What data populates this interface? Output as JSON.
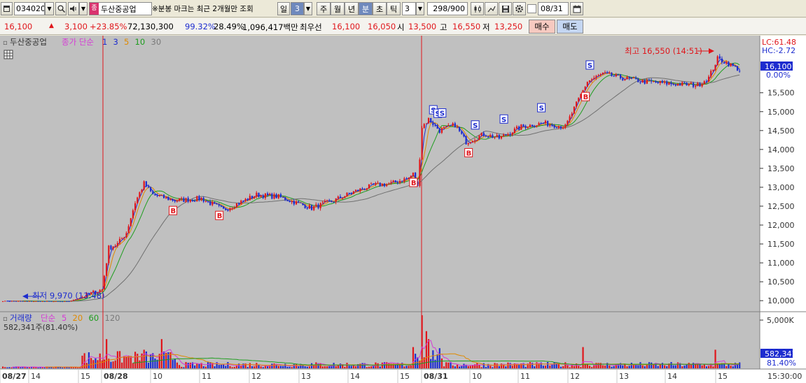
{
  "toolbar": {
    "code": "034020",
    "stock_name": "두산중공업",
    "notice": "※분봉 마크는 최근 2개월만 조회",
    "period_day": "일",
    "period_day_count": "3",
    "period_week": "주",
    "period_month": "월",
    "period_year": "년",
    "period_minute": "분",
    "period_second": "초",
    "period_tick": "틱",
    "interval": "3",
    "count": "298/900",
    "date": "08/31"
  },
  "quote": {
    "price": "16,100",
    "change": "3,100",
    "change_pct": "+23.85%",
    "volume": "72,130,300",
    "volume_ratio": "99.32%",
    "turnover": "28.49%",
    "amount": "1,096,417백만",
    "best_ask_label": "최우선",
    "best_ask": "16,100",
    "best_bid": "16,050",
    "open_label": "시",
    "open": "13,500",
    "high_label": "고",
    "high": "16,550",
    "low_label": "저",
    "low": "13,250",
    "buy_label": "매수",
    "sell_label": "매도"
  },
  "price_panel": {
    "title": "두산중공업",
    "ma_label": "종가 단순",
    "ma_periods": [
      "1",
      "3",
      "5",
      "10",
      "30"
    ],
    "ma_colors": [
      "#1d2ccf",
      "#1d2ccf",
      "#e08a00",
      "#1f9e1f",
      "#7a7a7a"
    ],
    "high_mark": "최고 16,550 (14:51)",
    "low_mark": "최저 9,970 (13:48)",
    "lc": "LC:61.48",
    "hc": "HC:-2.72",
    "current_price": "16,100",
    "current_pct": "0.00%"
  },
  "volume_panel": {
    "title": "거래량",
    "ma_label": "단순",
    "ma_periods": [
      "5",
      "20",
      "60",
      "120"
    ],
    "ma_colors": [
      "#d63ad6",
      "#e08a00",
      "#1f9e1f",
      "#7a7a7a"
    ],
    "info": "582,341주(81.40%)",
    "axis_label": "5,000K",
    "current_volume": "582,341",
    "current_pct": "81.40%"
  },
  "time_axis": {
    "labels": [
      "08/27",
      "14",
      "15",
      "08/28",
      "10",
      "11",
      "12",
      "13",
      "14",
      "15",
      "08/31",
      "10",
      "11",
      "12",
      "13",
      "14",
      "15"
    ],
    "end_time": "15:30:00"
  },
  "chart_data": {
    "type": "candlestick",
    "interval": "3분",
    "y_ticks": [
      10000,
      10500,
      11000,
      11500,
      12000,
      12500,
      13000,
      13500,
      14000,
      14500,
      15000,
      15500
    ],
    "ylim": [
      9800,
      16900
    ],
    "high": 16550,
    "low": 9970,
    "last": 16100,
    "anchors": [
      [
        0,
        9990
      ],
      [
        30,
        9980
      ],
      [
        36,
        10100
      ],
      [
        45,
        10300
      ],
      [
        48,
        11400
      ],
      [
        52,
        11500
      ],
      [
        56,
        11800
      ],
      [
        60,
        12600
      ],
      [
        64,
        13100
      ],
      [
        68,
        12800
      ],
      [
        78,
        12650
      ],
      [
        90,
        12700
      ],
      [
        100,
        12400
      ],
      [
        115,
        12800
      ],
      [
        125,
        12750
      ],
      [
        140,
        12450
      ],
      [
        150,
        12650
      ],
      [
        160,
        12900
      ],
      [
        168,
        13050
      ],
      [
        176,
        13100
      ],
      [
        184,
        13250
      ],
      [
        186,
        13350
      ],
      [
        188,
        13000
      ],
      [
        190,
        14600
      ],
      [
        193,
        14800
      ],
      [
        198,
        14500
      ],
      [
        205,
        14650
      ],
      [
        210,
        14200
      ],
      [
        218,
        14400
      ],
      [
        225,
        14300
      ],
      [
        235,
        14600
      ],
      [
        245,
        14700
      ],
      [
        255,
        14600
      ],
      [
        260,
        15200
      ],
      [
        265,
        15800
      ],
      [
        272,
        16000
      ],
      [
        280,
        15900
      ],
      [
        290,
        15800
      ],
      [
        300,
        15750
      ],
      [
        315,
        15700
      ],
      [
        320,
        15900
      ],
      [
        324,
        16400
      ],
      [
        328,
        16300
      ],
      [
        334,
        16100
      ]
    ],
    "marks": [
      {
        "label": "B",
        "i": 77,
        "side": "below"
      },
      {
        "label": "B",
        "i": 98,
        "side": "below"
      },
      {
        "label": "B",
        "i": 186,
        "side": "below"
      },
      {
        "label": "S",
        "i": 195,
        "side": "above"
      },
      {
        "label": "S",
        "i": 197,
        "side": "above"
      },
      {
        "label": "S",
        "i": 199,
        "side": "above"
      },
      {
        "label": "B",
        "i": 211,
        "side": "below"
      },
      {
        "label": "S",
        "i": 214,
        "side": "above"
      },
      {
        "label": "S",
        "i": 227,
        "side": "above"
      },
      {
        "label": "S",
        "i": 244,
        "side": "above"
      },
      {
        "label": "B",
        "i": 264,
        "side": "below"
      },
      {
        "label": "S",
        "i": 266,
        "side": "above"
      }
    ],
    "volume_spikes": [
      {
        "i": 47,
        "v": 0.55
      },
      {
        "i": 64,
        "v": 0.35
      },
      {
        "i": 72,
        "v": 0.55
      },
      {
        "i": 186,
        "v": 0.4
      },
      {
        "i": 190,
        "v": 1.0
      },
      {
        "i": 192,
        "v": 0.7
      },
      {
        "i": 193,
        "v": 0.55
      },
      {
        "i": 263,
        "v": 0.4
      },
      {
        "i": 323,
        "v": 0.35
      }
    ]
  }
}
